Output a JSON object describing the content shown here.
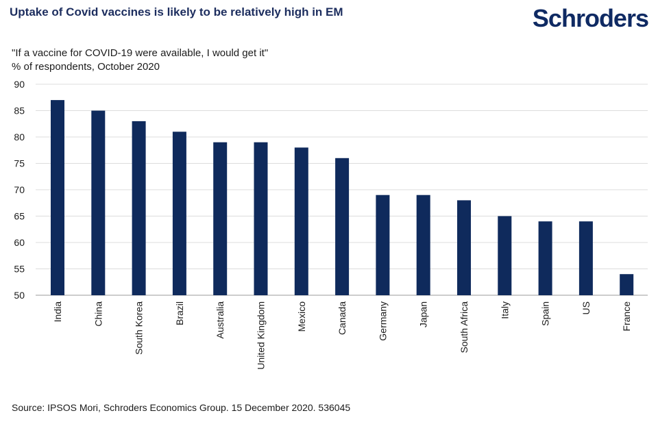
{
  "header": {
    "title": "Uptake of Covid vaccines is likely to be relatively high in EM",
    "logo_text": "Schroders",
    "brand_color": "#0f2a63"
  },
  "subtitle": {
    "line1": "\"If a vaccine for COVID-19 were available, I would get it\"",
    "line2": "% of respondents, October 2020"
  },
  "footer": {
    "source": "Source: IPSOS Mori, Schroders Economics Group. 15 December 2020. 536045"
  },
  "chart_data": {
    "type": "bar",
    "categories": [
      "India",
      "China",
      "South Korea",
      "Brazil",
      "Australia",
      "United Kingdom",
      "Mexico",
      "Canada",
      "Germany",
      "Japan",
      "South Africa",
      "Italy",
      "Spain",
      "US",
      "France"
    ],
    "values": [
      87,
      85,
      83,
      81,
      79,
      79,
      78,
      76,
      69,
      69,
      68,
      65,
      64,
      64,
      54
    ],
    "ylim": [
      50,
      90
    ],
    "yticks": [
      50,
      55,
      60,
      65,
      70,
      75,
      80,
      85,
      90
    ],
    "grid": true,
    "bar_color": "#0f2a5c"
  }
}
